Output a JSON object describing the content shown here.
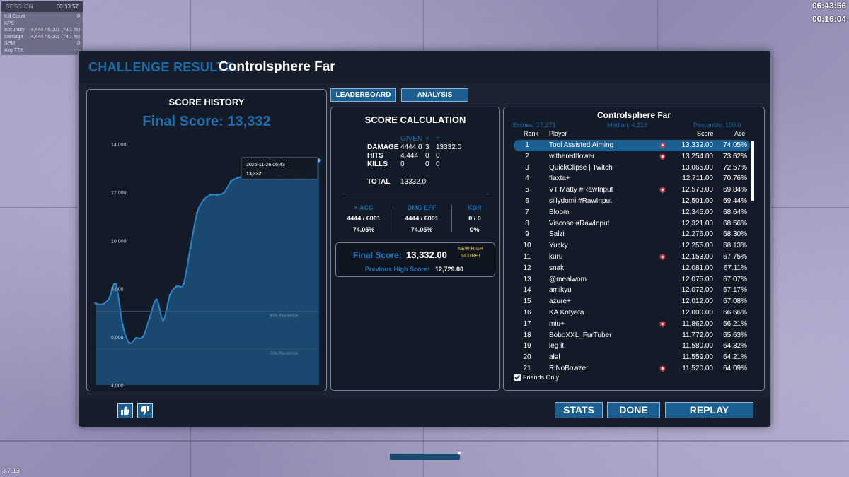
{
  "hud": {
    "session_label": "SESSION",
    "session_time": "00:13:57",
    "stats": [
      {
        "label": "Kill Count",
        "value": "0"
      },
      {
        "label": "KPS",
        "value": "--"
      },
      {
        "label": "Accuracy",
        "value": "4,444 / 6,001  (74.1 %)"
      },
      {
        "label": "Damage",
        "value": "4,444 / 6,001  (74.1 %)"
      },
      {
        "label": "SPM",
        "value": "0"
      },
      {
        "label": "Avg TTK",
        "value": "-.--"
      }
    ],
    "clock": "06:43:56",
    "timer": "00:16:04",
    "version": "3.7.13"
  },
  "header": {
    "prefix": "CHALLENGE RESULTS:",
    "scenario": "Controlsphere Far"
  },
  "score_history": {
    "title": "SCORE HISTORY",
    "final_score": "Final Score: 13,332",
    "tooltip_date": "2025-11-26 06:43",
    "tooltip_value": "13,332",
    "percentile_90": "90th Percentile",
    "percentile_75": "75th Percentile"
  },
  "chart_data": {
    "type": "area",
    "yticks": [
      "14,000",
      "12,000",
      "10,000",
      "8,000",
      "6,000",
      "4,000"
    ],
    "ylim": [
      4000,
      14500
    ],
    "x": [
      1,
      2,
      3,
      4,
      5,
      6,
      7,
      8,
      9,
      10,
      11,
      12,
      13,
      14,
      15,
      16,
      17,
      18,
      19,
      20,
      21,
      22,
      23,
      24,
      25,
      26,
      27,
      28,
      29,
      30,
      31,
      32,
      33,
      34
    ],
    "values": [
      7400,
      7350,
      7600,
      8200,
      6500,
      5750,
      5950,
      6000,
      6800,
      7550,
      6700,
      7750,
      8100,
      8200,
      9700,
      11150,
      11700,
      11900,
      11900,
      12000,
      12450,
      12600,
      12700,
      12900,
      12600,
      12800,
      12850,
      12700,
      12750,
      12850,
      12600,
      12650,
      12900,
      13332
    ],
    "percentile_lines": [
      {
        "label": "90th Percentile",
        "value": 7070
      },
      {
        "label": "75th Percentile",
        "value": 5500
      }
    ],
    "grid": false
  },
  "tabs": {
    "leaderboard": "LEADERBOARD",
    "analysis": "ANALYSIS"
  },
  "calc": {
    "title": "SCORE CALCULATION",
    "given": "GIVEN",
    "times": "×",
    "equals": "=",
    "damage_label": "DAMAGE",
    "damage_given": "4444.0",
    "damage_mult": "3",
    "damage_total": "13332.0",
    "hits_label": "HITS",
    "hits_given": "4,444",
    "hits_mult": "0",
    "hits_total": "0",
    "kills_label": "KILLS",
    "kills_given": "0",
    "kills_mult": "0",
    "kills_total": "0",
    "total_label": "TOTAL",
    "total_value": "13332.0",
    "acc_label": "× ACC",
    "acc_frac": "4444 / 6001",
    "acc_pct": "74.05%",
    "dmg_label": "DMG EFF",
    "dmg_frac": "4444 / 6001",
    "dmg_pct": "74.05%",
    "kdr_label": "KDR",
    "kdr_frac": "0 / 0",
    "kdr_pct": "0%",
    "final_label": "Final Score:",
    "final_value": "13,332.00",
    "new_high_1": "NEW HIGH",
    "new_high_2": "SCORE!",
    "prev_label": "Previous High Score:",
    "prev_value": "12,729.00"
  },
  "leaderboard": {
    "title": "Controlsphere Far",
    "entries": "Entries: 17,271",
    "median": "Median: 4,218",
    "percentile": "Percentile: 100.0",
    "col_rank": "Rank",
    "col_player": "Player",
    "col_score": "Score",
    "col_acc": "Acc",
    "friends_only": "Friends Only",
    "rows": [
      {
        "rank": "1",
        "player": "Tool Assisted Aiming",
        "score": "13,332.00",
        "acc": "74.05%",
        "badge": true
      },
      {
        "rank": "2",
        "player": "witheredflower",
        "score": "13,254.00",
        "acc": "73.62%",
        "badge": true
      },
      {
        "rank": "3",
        "player": "QuickClipse | Twitch",
        "score": "13,065.00",
        "acc": "72.57%",
        "badge": false
      },
      {
        "rank": "4",
        "player": "flaxta+",
        "score": "12,711.00",
        "acc": "70.76%",
        "badge": false
      },
      {
        "rank": "5",
        "player": "VT Matty #RawInput",
        "score": "12,573.00",
        "acc": "69.84%",
        "badge": true
      },
      {
        "rank": "6",
        "player": "sillydomi #RawInput",
        "score": "12,501.00",
        "acc": "69.44%",
        "badge": false
      },
      {
        "rank": "7",
        "player": "Bloom",
        "score": "12,345.00",
        "acc": "68.64%",
        "badge": false
      },
      {
        "rank": "8",
        "player": "Viscose #RawInput",
        "score": "12,321.00",
        "acc": "68.56%",
        "badge": false
      },
      {
        "rank": "9",
        "player": "Salzi",
        "score": "12,276.00",
        "acc": "68.30%",
        "badge": false
      },
      {
        "rank": "10",
        "player": "Yucky",
        "score": "12,255.00",
        "acc": "68.13%",
        "badge": false
      },
      {
        "rank": "11",
        "player": "kuru",
        "score": "12,153.00",
        "acc": "67.75%",
        "badge": true
      },
      {
        "rank": "12",
        "player": "snak",
        "score": "12,081.00",
        "acc": "67.11%",
        "badge": false
      },
      {
        "rank": "13",
        "player": "@mealwom",
        "score": "12,075.00",
        "acc": "67.07%",
        "badge": false
      },
      {
        "rank": "14",
        "player": "amikyu",
        "score": "12,072.00",
        "acc": "67.17%",
        "badge": false
      },
      {
        "rank": "15",
        "player": "azure+",
        "score": "12,012.00",
        "acc": "67.08%",
        "badge": false
      },
      {
        "rank": "16",
        "player": "KA Kotyata",
        "score": "12,000.00",
        "acc": "66.66%",
        "badge": false
      },
      {
        "rank": "17",
        "player": "miu+",
        "score": "11,862.00",
        "acc": "66.21%",
        "badge": true
      },
      {
        "rank": "18",
        "player": "BoboXXL_FurTuber",
        "score": "11,772.00",
        "acc": "65.63%",
        "badge": false
      },
      {
        "rank": "19",
        "player": "leg it",
        "score": "11,580.00",
        "acc": "64.32%",
        "badge": false
      },
      {
        "rank": "20",
        "player": "ałəl",
        "score": "11,559.00",
        "acc": "64.21%",
        "badge": false
      },
      {
        "rank": "21",
        "player": "RiNoBowzer",
        "score": "11,520.00",
        "acc": "64.09%",
        "badge": true
      }
    ]
  },
  "footer": {
    "stats": "STATS",
    "done": "DONE",
    "replay": "REPLAY"
  },
  "colors": {
    "accent": "#1b5f92",
    "title_blue": "#1c6ba8",
    "panel_bg": "#1b2332",
    "badge_red": "#d23a4a"
  }
}
